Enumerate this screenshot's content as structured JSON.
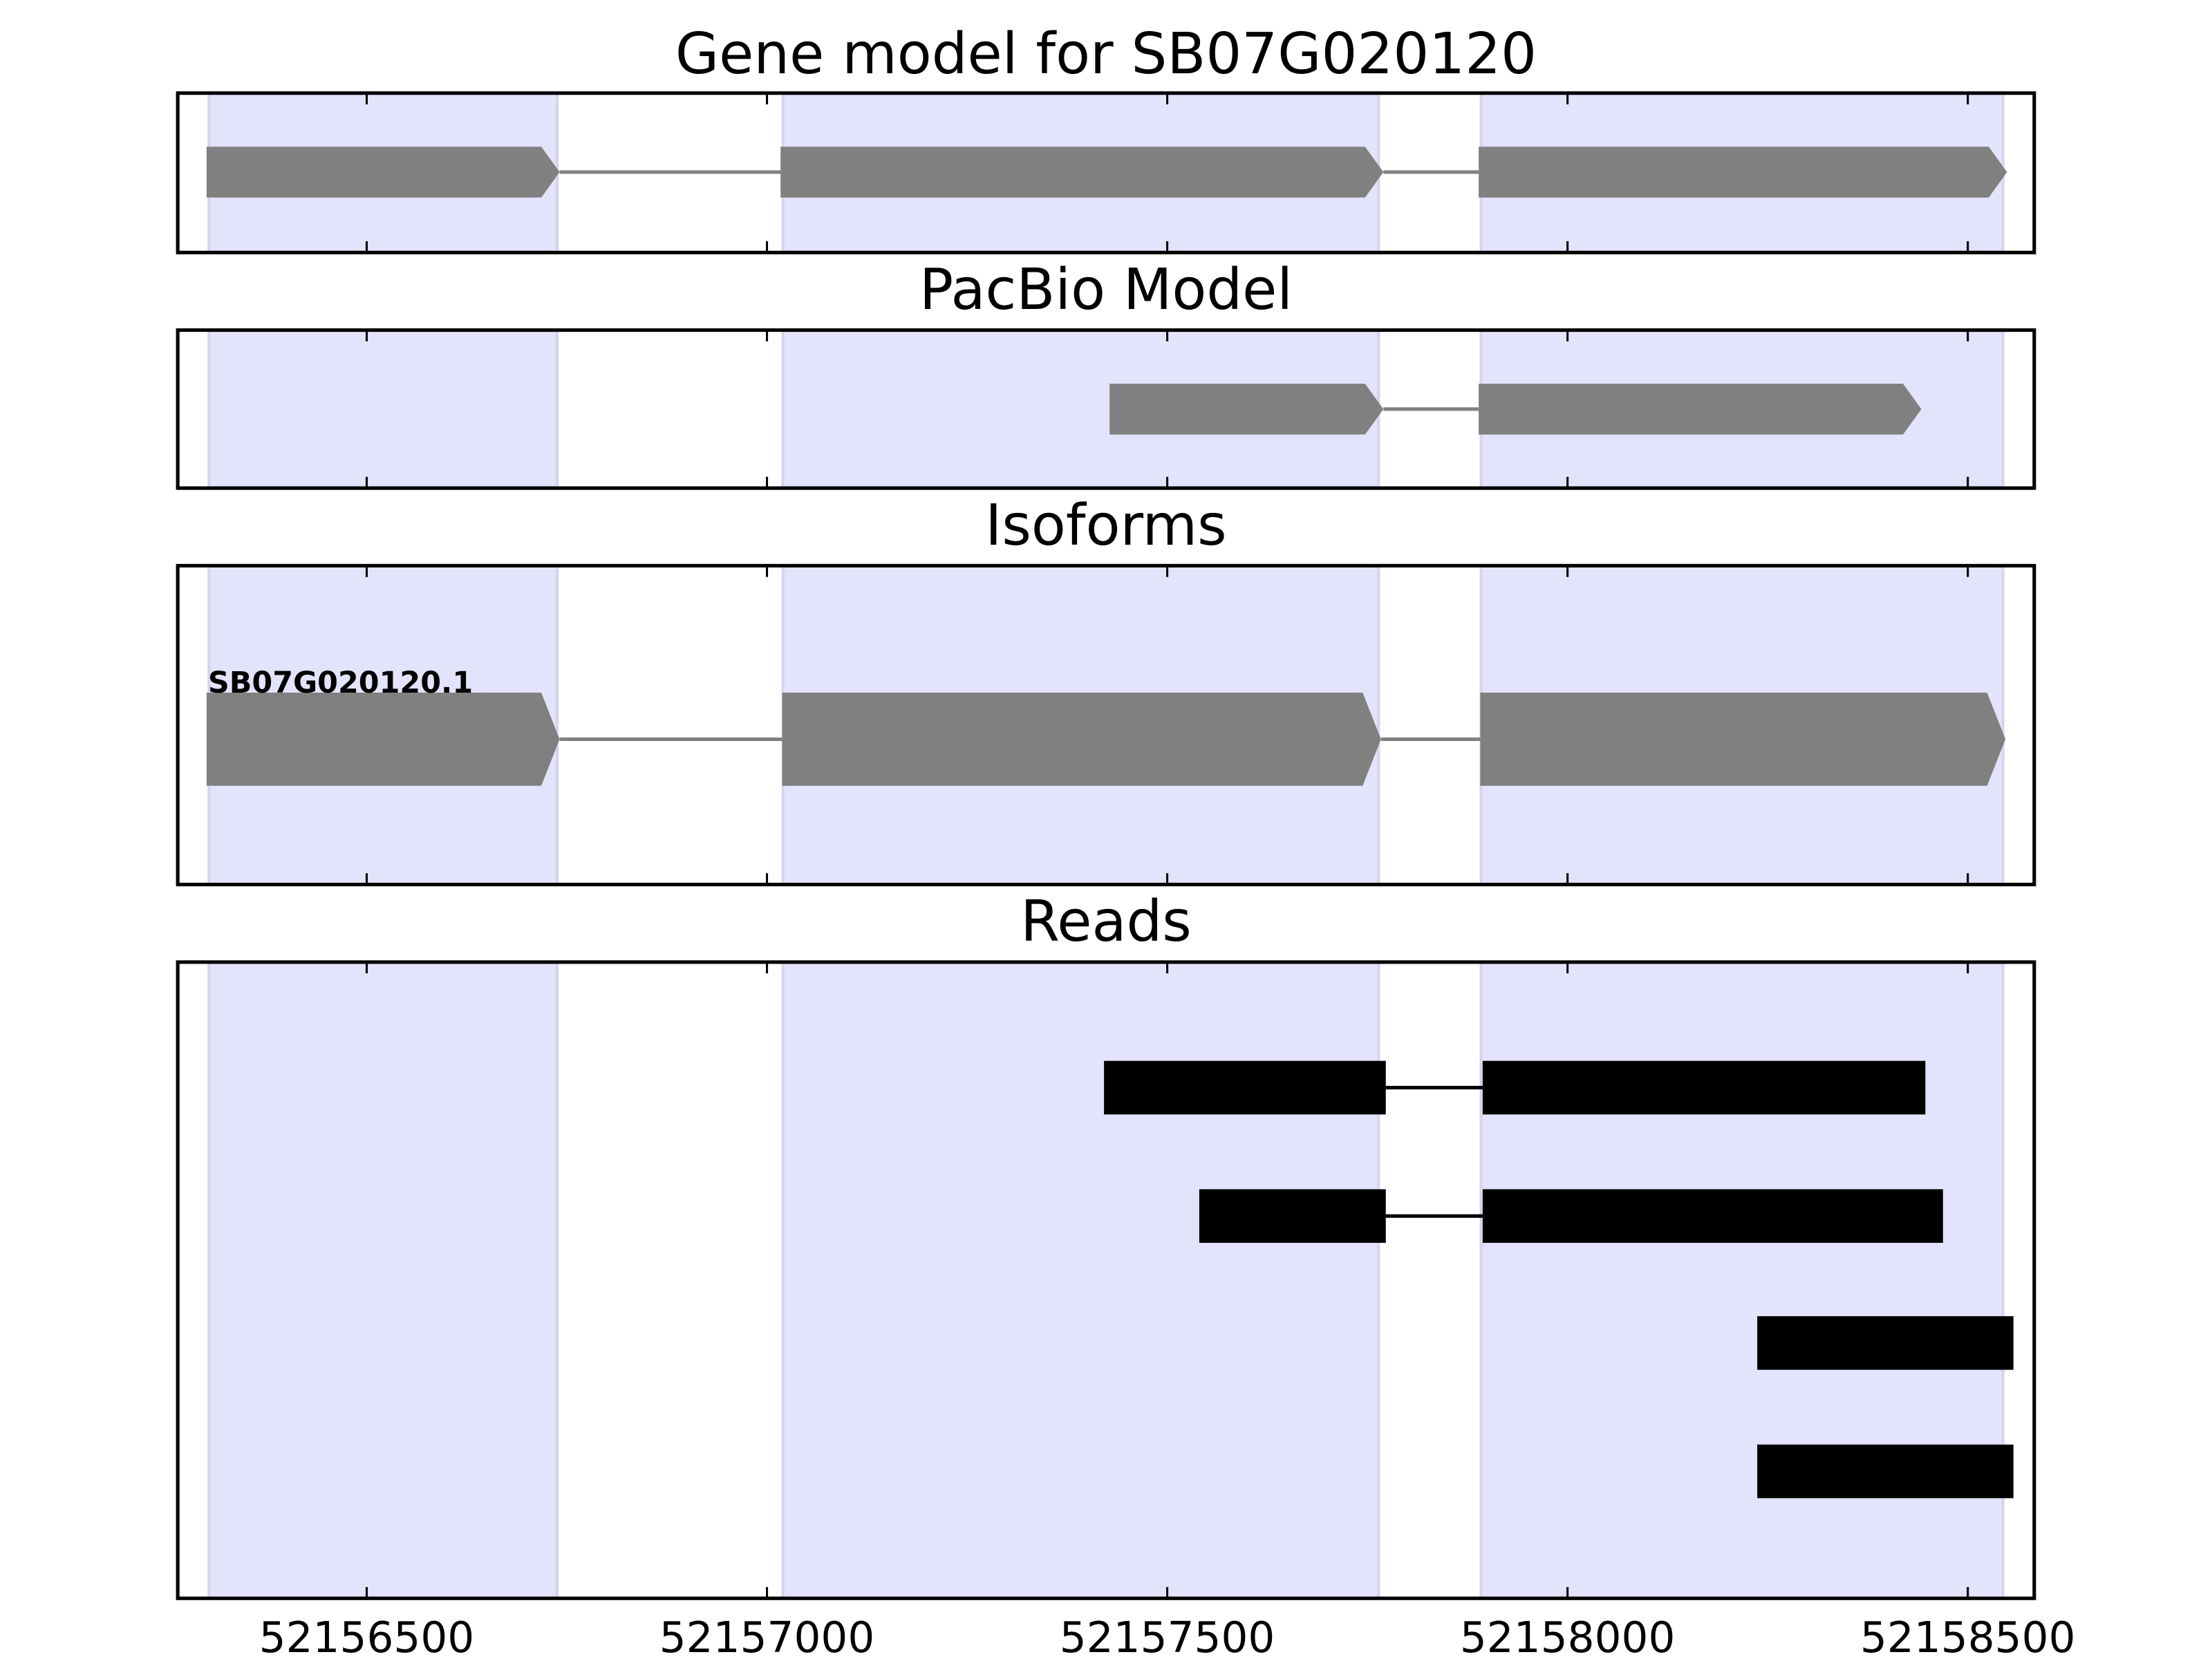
{
  "chart_data": {
    "type": "genetrack",
    "xlim": [
      52156264,
      52158583
    ],
    "xticks": [
      52156500,
      52157000,
      52157500,
      52158000,
      52158500
    ],
    "highlight_color": "#e3e3fc",
    "highlights": [
      [
        52156303,
        52156738
      ],
      [
        52157020,
        52157764
      ],
      [
        52157892,
        52158544
      ]
    ],
    "tracks": [
      {
        "title": "Gene model for SB07G020120",
        "style": "arrow",
        "color": "#808080",
        "features": [
          {
            "blocks": [
              [
                52156300,
                52156741
              ],
              [
                52157017,
                52157770
              ],
              [
                52157889,
                52158549
              ]
            ]
          }
        ]
      },
      {
        "title": "PacBio Model",
        "style": "arrow",
        "color": "#808080",
        "features": [
          {
            "blocks": [
              [
                52157428,
                52157770
              ],
              [
                52157889,
                52158442
              ]
            ]
          }
        ]
      },
      {
        "title": "Isoforms",
        "style": "arrow",
        "color": "#808080",
        "features": [
          {
            "label": "SB07G020120.1",
            "blocks": [
              [
                52156300,
                52156741
              ],
              [
                52157019,
                52157767
              ],
              [
                52157891,
                52158547
              ]
            ]
          }
        ]
      },
      {
        "title": "Reads",
        "style": "box",
        "color": "#000000",
        "features": [
          {
            "blocks": [
              [
                52157421,
                52157773
              ],
              [
                52157894,
                52158447
              ]
            ]
          },
          {
            "blocks": [
              [
                52157540,
                52157773
              ],
              [
                52157894,
                52158469
              ]
            ]
          },
          {
            "blocks": [
              [
                52158237,
                52158557
              ]
            ]
          },
          {
            "blocks": [
              [
                52158237,
                52158557
              ]
            ]
          }
        ]
      }
    ]
  }
}
